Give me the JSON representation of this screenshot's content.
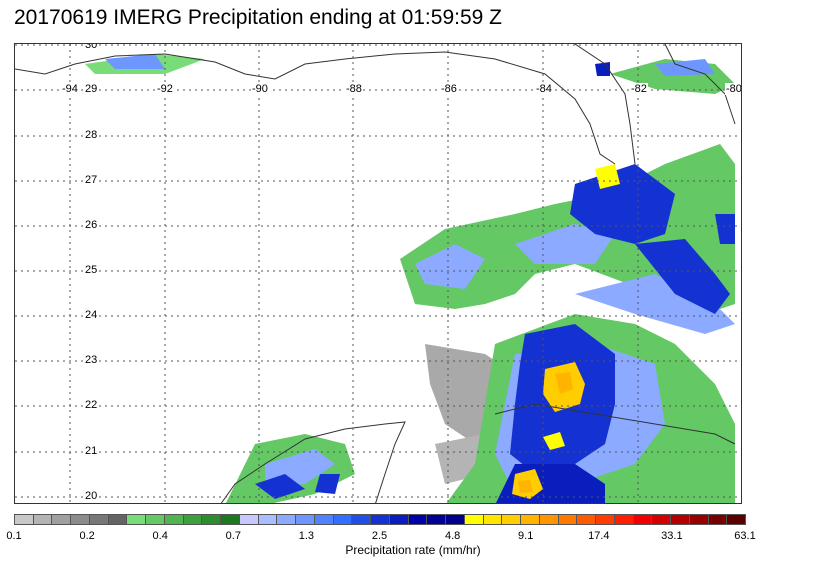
{
  "title": "20170619 IMERG Precipitation ending at 01:59:59 Z",
  "map": {
    "lon_labels": [
      "-94",
      "-92",
      "-90",
      "-88",
      "-86",
      "-84",
      "-82",
      "-80"
    ],
    "lat_labels": [
      "30",
      "29",
      "28",
      "27",
      "26",
      "25",
      "24",
      "23",
      "22",
      "21",
      "20"
    ],
    "gridlines": true,
    "gridline_style": "dotted"
  },
  "colorbar": {
    "title": "Precipitation rate (mm/hr)",
    "tick_labels": [
      "0.1",
      "0.2",
      "0.4",
      "0.7",
      "1.3",
      "2.5",
      "4.8",
      "9.1",
      "17.4",
      "33.1",
      "63.1"
    ],
    "colors": [
      "#c8c8c8",
      "#b4b4b4",
      "#a0a0a0",
      "#8c8c8c",
      "#787878",
      "#646464",
      "#78dc78",
      "#64c864",
      "#50b450",
      "#3ca03c",
      "#2d8c2d",
      "#1e781e",
      "#c8c8ff",
      "#aabeff",
      "#8caaff",
      "#6e96ff",
      "#5082ff",
      "#326eff",
      "#1e50e6",
      "#1432d2",
      "#0a1ebe",
      "#0000aa",
      "#000096",
      "#00008c",
      "#ffff00",
      "#ffe600",
      "#ffcd00",
      "#ffb400",
      "#ff9600",
      "#ff7800",
      "#ff5a00",
      "#ff3c00",
      "#ff1e00",
      "#f00000",
      "#d20000",
      "#b40000",
      "#960000",
      "#780000",
      "#5a0000"
    ]
  },
  "legend_levels": {
    "light": "#c8c8c8",
    "green": "#78dc78",
    "lightblue": "#8caaff",
    "blue": "#1432d2",
    "yellow": "#ffff00",
    "orange": "#ffb400"
  }
}
